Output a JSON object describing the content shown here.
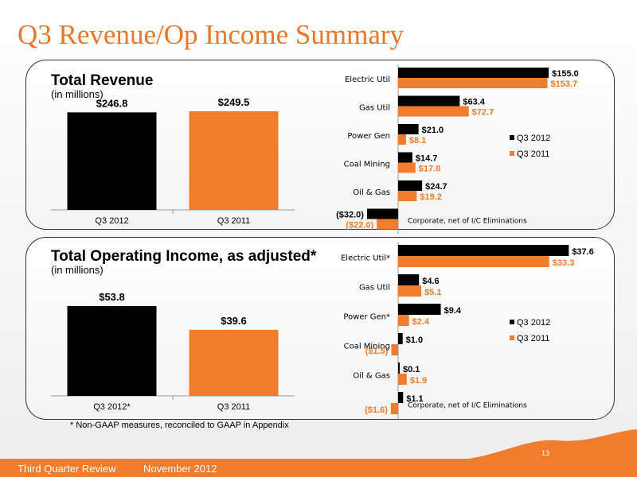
{
  "page": {
    "title": "Q3 Revenue/Op Income Summary",
    "footnote": "* Non-GAAP measures, reconciled to GAAP in Appendix",
    "footer_left": "Third Quarter Review",
    "footer_date": "November 2012",
    "page_number": "13"
  },
  "colors": {
    "q3_2012": "#000000",
    "q3_2011": "#f07c2c",
    "accent": "#e8772e"
  },
  "chart_data": [
    {
      "type": "bar",
      "title": "Total Revenue",
      "subtitle": "(in millions)",
      "categories": [
        "Q3 2012",
        "Q3 2011"
      ],
      "values": [
        246.8,
        249.5
      ],
      "labels": [
        "$246.8",
        "$249.5"
      ],
      "colors": [
        "#000000",
        "#f07c2c"
      ]
    },
    {
      "type": "bar",
      "orientation": "horizontal",
      "categories": [
        "Electric Util",
        "Gas Util",
        "Power Gen",
        "Coal Mining",
        "Oil & Gas",
        "Corporate, net of I/C Eliminations"
      ],
      "series": [
        {
          "name": "Q3 2012",
          "values": [
            155.0,
            63.4,
            21.0,
            14.7,
            24.7,
            -32.0
          ],
          "labels": [
            "$155.0",
            "$63.4",
            "$21.0",
            "$14.7",
            "$24.7",
            "($32.0)"
          ]
        },
        {
          "name": "Q3 2011",
          "values": [
            153.7,
            72.7,
            8.1,
            17.8,
            19.2,
            -22.0
          ],
          "labels": [
            "$153.7",
            "$72.7",
            "$8.1",
            "$17.8",
            "$19.2",
            "($22.0)"
          ]
        }
      ],
      "legend": "right"
    },
    {
      "type": "bar",
      "title": "Total Operating Income, as adjusted*",
      "subtitle": "(in millions)",
      "categories": [
        "Q3 2012*",
        "Q3 2011"
      ],
      "values": [
        53.8,
        39.6
      ],
      "labels": [
        "$53.8",
        "$39.6"
      ],
      "colors": [
        "#000000",
        "#f07c2c"
      ]
    },
    {
      "type": "bar",
      "orientation": "horizontal",
      "categories": [
        "Electric Util*",
        "Gas Util",
        "Power Gen*",
        "Coal Mining",
        "Oil & Gas",
        "Corporate, net of I/C Eliminations"
      ],
      "series": [
        {
          "name": "Q3 2012",
          "values": [
            37.6,
            4.6,
            9.4,
            1.0,
            0.1,
            1.1
          ],
          "labels": [
            "$37.6",
            "$4.6",
            "$9.4",
            "$1.0",
            "$0.1",
            "$1.1"
          ]
        },
        {
          "name": "Q3 2011",
          "values": [
            33.3,
            5.1,
            2.4,
            -1.5,
            1.9,
            -1.6
          ],
          "labels": [
            "$33.3",
            "$5.1",
            "$2.4",
            "($1.5)",
            "$1.9",
            "($1.6)"
          ]
        }
      ],
      "legend": "right"
    }
  ]
}
